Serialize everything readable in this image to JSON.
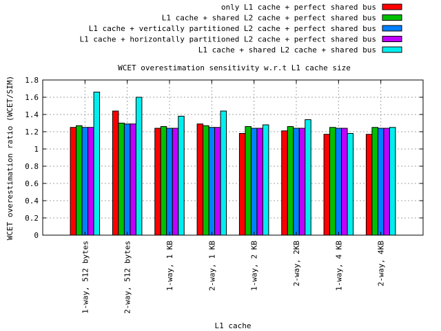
{
  "chart_data": {
    "type": "bar",
    "title": "WCET overestimation sensitivity w.r.t L1 cache size",
    "xlabel": "L1 cache",
    "ylabel": "WCET overestimation ratio (WCET/SIM)",
    "ylim": [
      0,
      1.8
    ],
    "yticks": [
      "0",
      "0.2",
      "0.4",
      "0.6",
      "0.8",
      "1",
      "1.2",
      "1.4",
      "1.6",
      "1.8"
    ],
    "grid": true,
    "legend_position": "top-right",
    "categories": [
      "1-way, 512 bytes",
      "2-way, 512 bytes",
      "1-way, 1 KB",
      "2-way, 1 KB",
      "1-way, 2 KB",
      "2-way, 2KB",
      "1-way, 4 KB",
      "2-way, 4KB"
    ],
    "series": [
      {
        "name": "only L1 cache + perfect shared bus",
        "color": "#ff0000",
        "values": [
          1.25,
          1.44,
          1.24,
          1.29,
          1.18,
          1.21,
          1.17,
          1.17
        ]
      },
      {
        "name": "L1 cache + shared L2 cache + perfect shared bus",
        "color": "#00c000",
        "values": [
          1.27,
          1.3,
          1.26,
          1.27,
          1.26,
          1.26,
          1.25,
          1.25
        ]
      },
      {
        "name": "L1 cache + vertically partitioned L2 cache + perfect shared bus",
        "color": "#0080ff",
        "values": [
          1.25,
          1.29,
          1.24,
          1.25,
          1.24,
          1.24,
          1.24,
          1.24
        ]
      },
      {
        "name": "L1 cache + horizontally partitioned L2 cache + perfect shared bus",
        "color": "#c000ff",
        "values": [
          1.25,
          1.29,
          1.24,
          1.25,
          1.24,
          1.24,
          1.24,
          1.24
        ]
      },
      {
        "name": "L1 cache + shared L2 cache + shared bus",
        "color": "#00eeee",
        "values": [
          1.66,
          1.6,
          1.38,
          1.44,
          1.28,
          1.34,
          1.18,
          1.25
        ]
      }
    ]
  }
}
